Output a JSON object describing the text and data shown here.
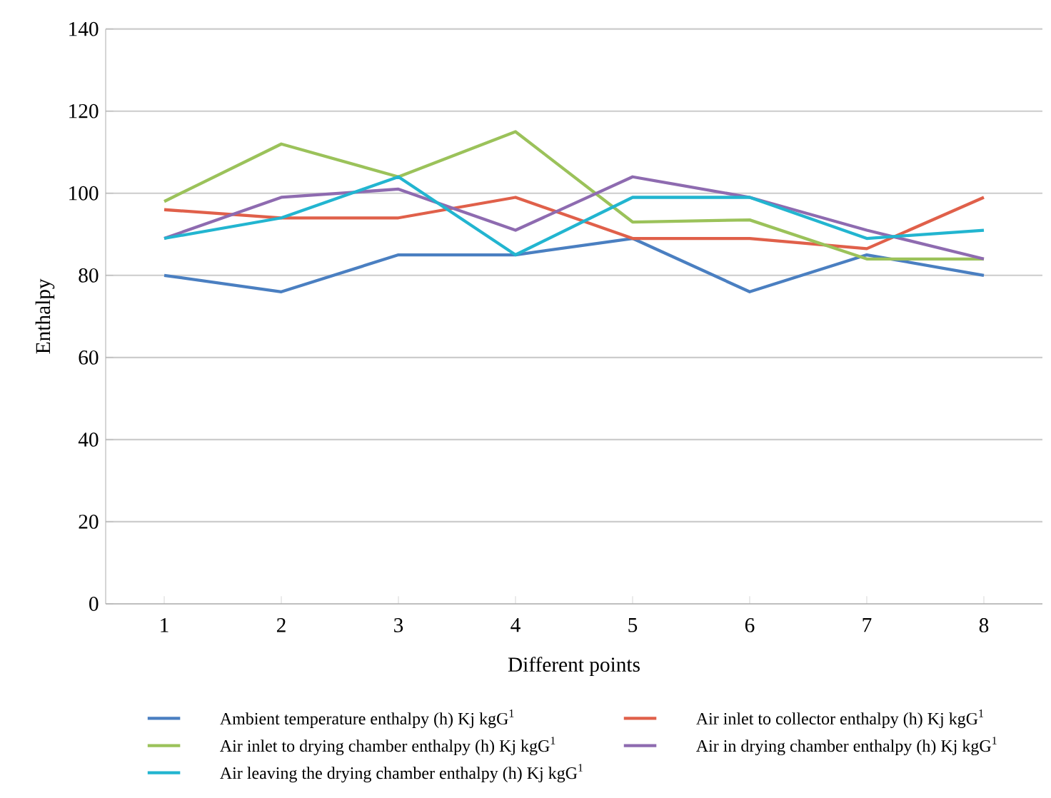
{
  "chart_data": {
    "type": "line",
    "xlabel": "Different points",
    "ylabel": "Enthalpy",
    "categories": [
      "1",
      "2",
      "3",
      "4",
      "5",
      "6",
      "7",
      "8"
    ],
    "ylim": [
      0,
      140
    ],
    "yticks": [
      0,
      20,
      40,
      60,
      80,
      100,
      120,
      140
    ],
    "grid": "y",
    "legend": "bottom",
    "marker": "none",
    "line_style": "solid",
    "series": [
      {
        "name": "Ambient temperature enthalpy (h) Kj kgG$^{1}$",
        "color": "#4a7fc1",
        "values": [
          80,
          76,
          85,
          85,
          89,
          76,
          85,
          80
        ]
      },
      {
        "name": "Air inlet to collector enthalpy (h) Kj kgG$^{1}$",
        "color": "#e0604a",
        "values": [
          96,
          94,
          94,
          99,
          89,
          89,
          86.5,
          99
        ]
      },
      {
        "name": "Air inlet to drying chamber enthalpy (h) Kj kgG$^{1}$",
        "color": "#9bc25a",
        "values": [
          98,
          112,
          104,
          115,
          93,
          93.5,
          84,
          84
        ]
      },
      {
        "name": "Air in drying chamber enthalpy (h) Kj kgG$^{1}$",
        "color": "#8e6bb0",
        "values": [
          89,
          99,
          101,
          91,
          104,
          99,
          91,
          84
        ]
      },
      {
        "name": "Air leaving the drying chamber enthalpy (h) Kj kgG$^{1}$",
        "color": "#22b5d0",
        "values": [
          89,
          94,
          104,
          85,
          99,
          99,
          89,
          91
        ]
      }
    ]
  }
}
